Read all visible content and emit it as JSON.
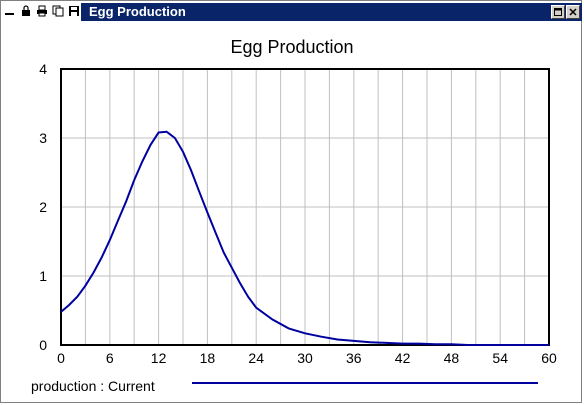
{
  "window": {
    "title": "Egg Production",
    "toolbar_icons": [
      "minimize-icon",
      "lock-icon",
      "print-icon",
      "copy-icon",
      "save-icon"
    ],
    "title_color": "#0a246a"
  },
  "chart_data": {
    "type": "line",
    "title": "Egg Production",
    "xlabel": "",
    "ylabel": "",
    "xlim": [
      0,
      60
    ],
    "ylim": [
      0,
      4
    ],
    "xticks": [
      0,
      6,
      12,
      18,
      24,
      30,
      36,
      42,
      48,
      54,
      60
    ],
    "yticks": [
      0,
      1,
      2,
      3,
      4
    ],
    "grid": true,
    "legend_position": "bottom",
    "series": [
      {
        "name": "production : Current",
        "color": "#0000a0",
        "x": [
          0,
          1,
          2,
          3,
          4,
          5,
          6,
          7,
          8,
          9,
          10,
          11,
          12,
          13,
          14,
          15,
          16,
          17,
          18,
          19,
          20,
          21,
          22,
          23,
          24,
          26,
          28,
          30,
          32,
          34,
          36,
          38,
          40,
          42,
          44,
          46,
          48,
          50,
          52,
          54,
          56,
          58,
          60
        ],
        "y": [
          0.48,
          0.58,
          0.7,
          0.86,
          1.05,
          1.27,
          1.52,
          1.8,
          2.08,
          2.39,
          2.66,
          2.9,
          3.08,
          3.09,
          3.0,
          2.8,
          2.53,
          2.22,
          1.92,
          1.63,
          1.34,
          1.12,
          0.9,
          0.7,
          0.54,
          0.37,
          0.24,
          0.17,
          0.12,
          0.08,
          0.06,
          0.04,
          0.03,
          0.02,
          0.02,
          0.01,
          0.01,
          0.0,
          0.0,
          0.0,
          0.0,
          0.0,
          0.0
        ]
      }
    ]
  }
}
